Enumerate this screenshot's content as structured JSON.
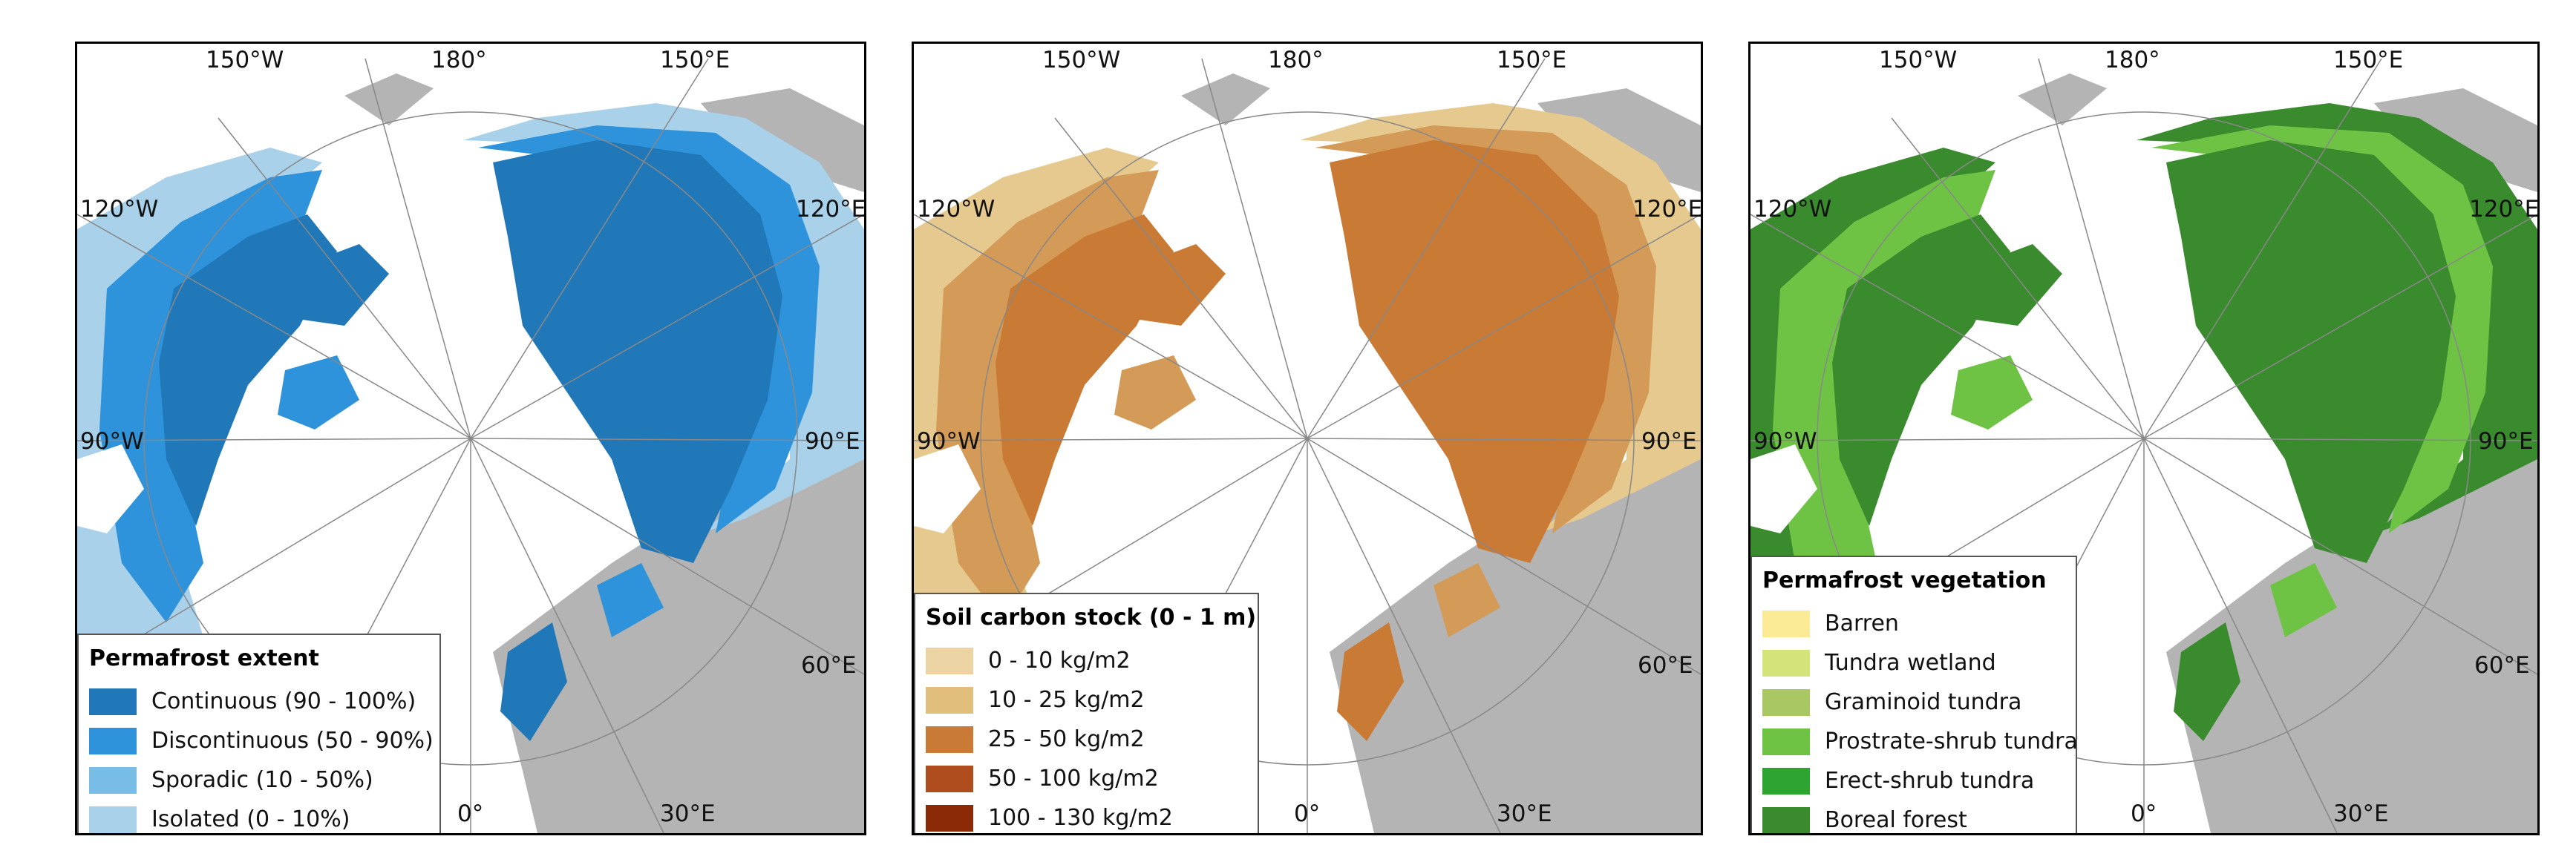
{
  "graticule_labels": {
    "w150": "150°W",
    "t180": "180°",
    "e150": "150°E",
    "w120": "120°W",
    "e120": "120°E",
    "w90": "90°W",
    "e90": "90°E",
    "e60": "60°E",
    "b0": "0°",
    "e30": "30°E"
  },
  "panels": [
    {
      "legend": {
        "title": "Permafrost extent",
        "items": [
          {
            "label": "Continuous (90 - 100%)",
            "color": "#2078b8"
          },
          {
            "label": "Discontinuous (50 - 90%)",
            "color": "#2e93db"
          },
          {
            "label": "Sporadic (10 - 50%)",
            "color": "#78bde6"
          },
          {
            "label": "Isolated (0 - 10%)",
            "color": "#a9d1ea"
          }
        ]
      },
      "land_color": "#a9d1ea",
      "inner_color": "#2078b8",
      "mid_color": "#2e93db"
    },
    {
      "legend": {
        "title": "Soil carbon stock (0 - 1 m)",
        "items": [
          {
            "label": "0 - 10 kg/m2",
            "color": "#ebd3a3"
          },
          {
            "label": "10 - 25 kg/m2",
            "color": "#e2be7c"
          },
          {
            "label": "25 - 50 kg/m2",
            "color": "#c97a34"
          },
          {
            "label": "50 - 100 kg/m2",
            "color": "#b04d1f"
          },
          {
            "label": "100 - 130 kg/m2",
            "color": "#8a2a06"
          }
        ]
      },
      "land_color": "#e6c98e",
      "inner_color": "#c97a34",
      "mid_color": "#d49a58"
    },
    {
      "legend": {
        "title": "Permafrost vegetation",
        "items": [
          {
            "label": "Barren",
            "color": "#fbeb96"
          },
          {
            "label": "Tundra wetland",
            "color": "#d4e47a"
          },
          {
            "label": "Graminoid tundra",
            "color": "#a9c864"
          },
          {
            "label": "Prostrate-shrub tundra",
            "color": "#6ec344"
          },
          {
            "label": "Erect-shrub tundra",
            "color": "#2fa531"
          },
          {
            "label": "Boreal forest",
            "color": "#3a8a2e"
          }
        ]
      },
      "land_color": "#3a8a2e",
      "inner_color": "#3a8a2e",
      "mid_color": "#6ec344"
    }
  ]
}
